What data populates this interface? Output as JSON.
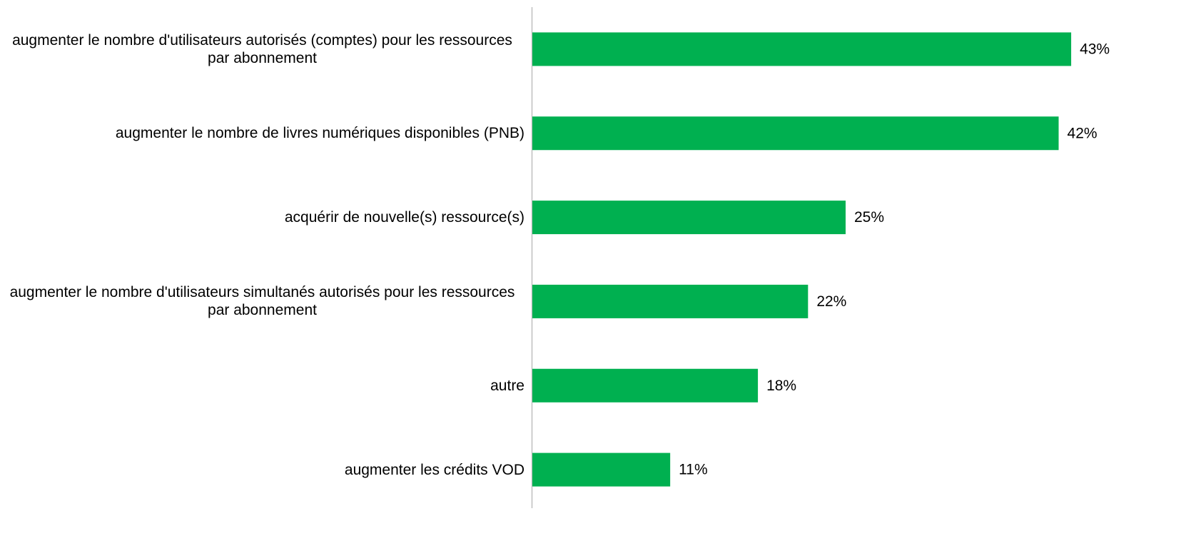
{
  "chart_data": {
    "type": "bar",
    "orientation": "horizontal",
    "categories": [
      "augmenter le nombre d'utilisateurs autorisés (comptes) pour les ressources par abonnement",
      "augmenter le nombre de livres numériques disponibles (PNB)",
      "acquérir de nouvelle(s) ressource(s)",
      "augmenter le nombre d'utilisateurs simultanés autorisés pour les ressources par abonnement",
      "autre",
      "augmenter les crédits VOD"
    ],
    "values": [
      43,
      42,
      25,
      22,
      18,
      11
    ],
    "value_labels": [
      "43%",
      "42%",
      "25%",
      "22%",
      "18%",
      "11%"
    ],
    "color": "#00b050",
    "xlim": [
      0,
      50
    ]
  }
}
